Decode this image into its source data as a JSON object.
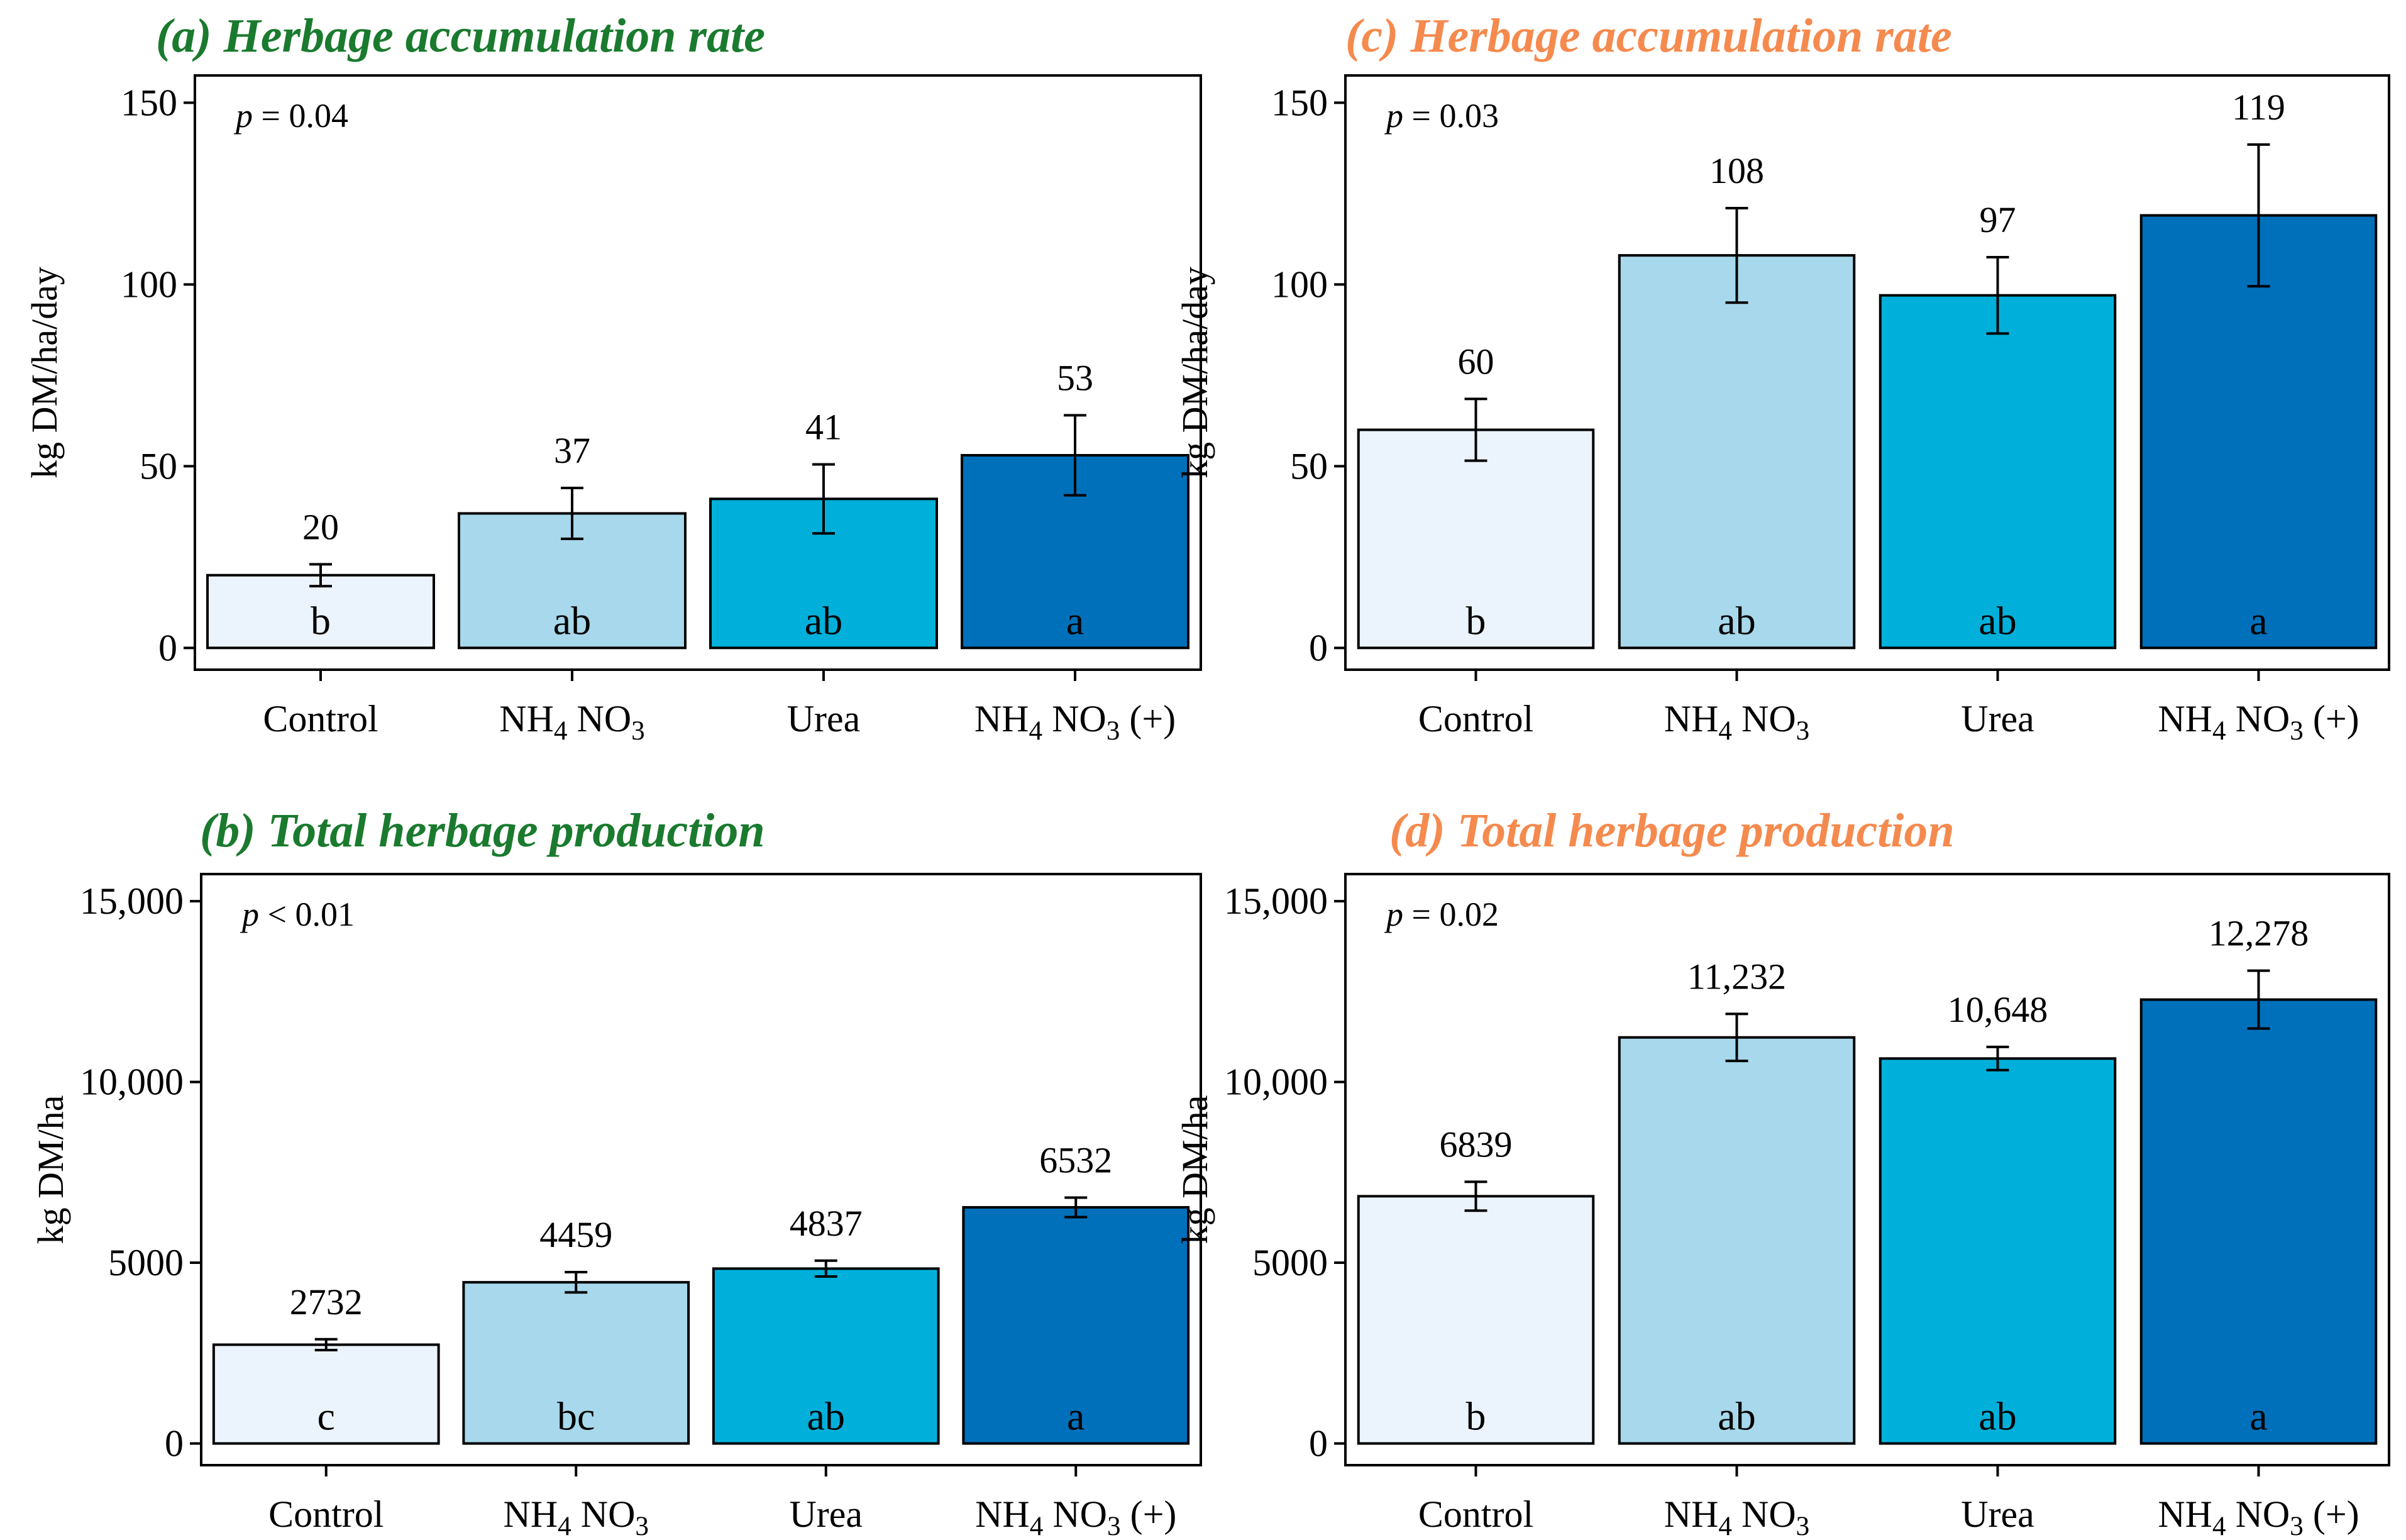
{
  "colors": {
    "title_left": "#1a7a2e",
    "title_right": "#f58a4e",
    "bar_fills": [
      "#ebf3fc",
      "#a7d8eb",
      "#00b0da",
      "#0070bb"
    ]
  },
  "chart_data": [
    {
      "type": "bar",
      "panel": "a",
      "title_tag": "(a)",
      "title_text": "Herbage accumulation rate",
      "title_color": "#1a7a2e",
      "categories": [
        "Control",
        "NH4 NO3",
        "Urea",
        "NH4 NO3 (+)"
      ],
      "values": [
        20,
        37,
        41,
        53
      ],
      "errors": [
        3,
        7,
        9.5,
        11
      ],
      "value_labels": [
        "20",
        "37",
        "41",
        "53"
      ],
      "letters": [
        "b",
        "ab",
        "ab",
        "a"
      ],
      "ylabel": "kg DM/ha/day",
      "ylim": [
        0,
        150
      ],
      "yticks": [
        0,
        50,
        100,
        150
      ],
      "ytick_labels": [
        "0",
        "50",
        "100",
        "150"
      ],
      "p_text": "= 0.04"
    },
    {
      "type": "bar",
      "panel": "b",
      "title_tag": "(b)",
      "title_text": "Total herbage production",
      "title_color": "#1a7a2e",
      "categories": [
        "Control",
        "NH4 NO3",
        "Urea",
        "NH4 NO3 (+)"
      ],
      "values": [
        2732,
        4459,
        4837,
        6532
      ],
      "errors": [
        150,
        280,
        220,
        270
      ],
      "value_labels": [
        "2732",
        "4459",
        "4837",
        "6532"
      ],
      "letters": [
        "c",
        "bc",
        "ab",
        "a"
      ],
      "ylabel": "kg DM/ha",
      "ylim": [
        0,
        15000
      ],
      "yticks": [
        0,
        5000,
        10000,
        15000
      ],
      "ytick_labels": [
        "0",
        "5000",
        "10,000",
        "15,000"
      ],
      "p_text": "< 0.01"
    },
    {
      "type": "bar",
      "panel": "c",
      "title_tag": "(c)",
      "title_text": "Herbage accumulation rate",
      "title_color": "#f58a4e",
      "categories": [
        "Control",
        "NH4 NO3",
        "Urea",
        "NH4 NO3 (+)"
      ],
      "values": [
        60,
        108,
        97,
        119
      ],
      "errors": [
        8.5,
        13,
        10.5,
        19.5
      ],
      "value_labels": [
        "60",
        "108",
        "97",
        "119"
      ],
      "letters": [
        "b",
        "ab",
        "ab",
        "a"
      ],
      "ylabel": "kg DM/ha/day",
      "ylim": [
        0,
        150
      ],
      "yticks": [
        0,
        50,
        100,
        150
      ],
      "ytick_labels": [
        "0",
        "50",
        "100",
        "150"
      ],
      "p_text": "= 0.03"
    },
    {
      "type": "bar",
      "panel": "d",
      "title_tag": "(d)",
      "title_text": "Total herbage production",
      "title_color": "#f58a4e",
      "categories": [
        "Control",
        "NH4 NO3",
        "Urea",
        "NH4 NO3 (+)"
      ],
      "values": [
        6839,
        11232,
        10648,
        12278
      ],
      "errors": [
        400,
        650,
        320,
        800
      ],
      "value_labels": [
        "6839",
        "11,232",
        "10,648",
        "12,278"
      ],
      "letters": [
        "b",
        "ab",
        "ab",
        "a"
      ],
      "ylabel": "kg DM/ha",
      "ylim": [
        0,
        15000
      ],
      "yticks": [
        0,
        5000,
        10000,
        15000
      ],
      "ytick_labels": [
        "0",
        "5000",
        "10,000",
        "15,000"
      ],
      "p_text": "= 0.02"
    }
  ]
}
